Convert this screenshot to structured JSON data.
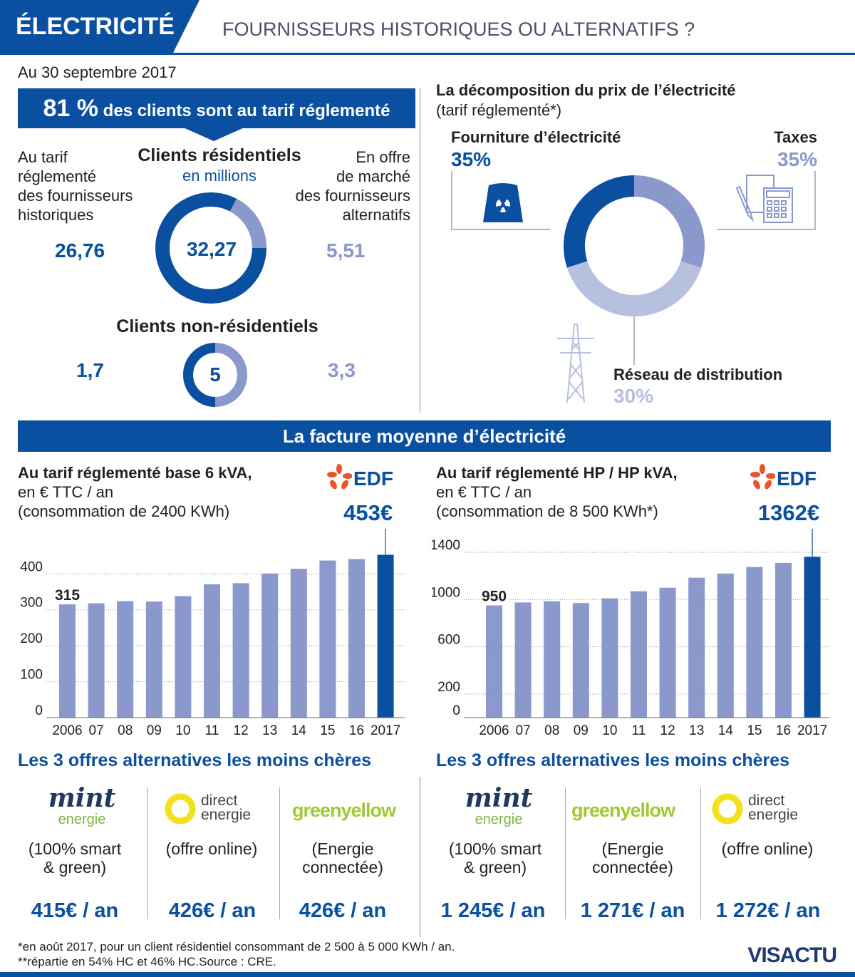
{
  "header": {
    "tag": "ÉLECTRICITÉ",
    "subtitle": "FOURNISSEURS HISTORIQUES OU ALTERNATIFS  ?"
  },
  "date": "Au 30 septembre 2017",
  "banner": {
    "pct": "81 %",
    "text": " des clients sont au tarif réglementé"
  },
  "clients": {
    "left_label": [
      "Au tarif",
      "réglementé",
      "des fournisseurs",
      "historiques"
    ],
    "right_label": [
      "En offre",
      "de marché",
      "des fournisseurs",
      "alternatifs"
    ],
    "res_title": "Clients résidentiels",
    "res_unit": "en millions",
    "res_left": "26,76",
    "res_total": "32,27",
    "res_right": "5,51",
    "nonres_title": "Clients non-résidentiels",
    "nonres_left": "1,7",
    "nonres_total": "5",
    "nonres_right": "3,3"
  },
  "price": {
    "title": "La décomposition du prix de l’électricité",
    "subtitle": "(tarif réglementé*)",
    "supply_label": "Fourniture d’électricité",
    "supply_pct": "35%",
    "tax_label": "Taxes",
    "tax_pct": "35%",
    "network_label": "Réseau de distribution",
    "network_pct": "30%"
  },
  "section_title": "La facture moyenne d’électricité",
  "chart_data": [
    {
      "type": "bar",
      "title": "Au tarif réglementé base 6 kVA,",
      "subtitle1": "en € TTC / an",
      "subtitle2": "(consommation de 2400 KWh)",
      "categories": [
        "2006",
        "07",
        "08",
        "09",
        "10",
        "11",
        "12",
        "13",
        "14",
        "15",
        "16",
        "2017"
      ],
      "values": [
        315,
        318,
        324,
        323,
        338,
        371,
        374,
        401,
        414,
        437,
        441,
        453
      ],
      "yticks": [
        "0",
        "100",
        "200",
        "300",
        "400"
      ],
      "ylim": [
        0,
        460
      ],
      "first_label": "315",
      "last_label": "453€",
      "brand": "EDF"
    },
    {
      "type": "bar",
      "title": "Au tarif réglementé HP / HP kVA,",
      "subtitle1": "en € TTC / an",
      "subtitle2": "(consommation de 8 500 KWh*)",
      "categories": [
        "2006",
        "07",
        "08",
        "09",
        "10",
        "11",
        "12",
        "13",
        "14",
        "15",
        "16",
        "2017"
      ],
      "values": [
        950,
        975,
        985,
        970,
        1010,
        1070,
        1100,
        1185,
        1220,
        1275,
        1310,
        1362
      ],
      "yticks": [
        "0",
        "200",
        "600",
        "1000",
        "1400"
      ],
      "ylim": [
        0,
        1400
      ],
      "first_label": "950",
      "last_label": "1362€",
      "brand": "EDF"
    }
  ],
  "offers_left": {
    "title": "Les 3 offres alternatives les moins chères",
    "items": [
      {
        "logo1": "mint",
        "logo2": "energie",
        "desc": [
          "(100% smart",
          "& green)"
        ],
        "price": "415€ / an"
      },
      {
        "logo1": "direct",
        "logo2": "energie",
        "desc": [
          "(offre online)"
        ],
        "price": "426€ / an"
      },
      {
        "logo1": "greenyellow",
        "logo2": "",
        "desc": [
          "(Energie",
          "connectée)"
        ],
        "price": "426€ / an"
      }
    ]
  },
  "offers_right": {
    "title": "Les 3 offres alternatives les moins chères",
    "items": [
      {
        "logo1": "mint",
        "logo2": "energie",
        "desc": [
          "(100% smart",
          "& green)"
        ],
        "price": "1 245€ / an"
      },
      {
        "logo1": "greenyellow",
        "logo2": "",
        "desc": [
          "(Energie",
          "connectée)"
        ],
        "price": "1 271€ / an"
      },
      {
        "logo1": "direct",
        "logo2": "energie",
        "desc": [
          "(offre online)"
        ],
        "price": "1 272€ / an"
      }
    ]
  },
  "footnotes": [
    "*en août 2017, pour un client résidentiel consommant de 2 500 à 5 000 KWh / an.",
    "**répartie en 54% HC et 46% HC.Source : CRE."
  ],
  "brand": "VISACTU",
  "colors": {
    "dark": "#0b4fa0",
    "mid": "#8a98cc",
    "light": "#b8c0e0"
  }
}
